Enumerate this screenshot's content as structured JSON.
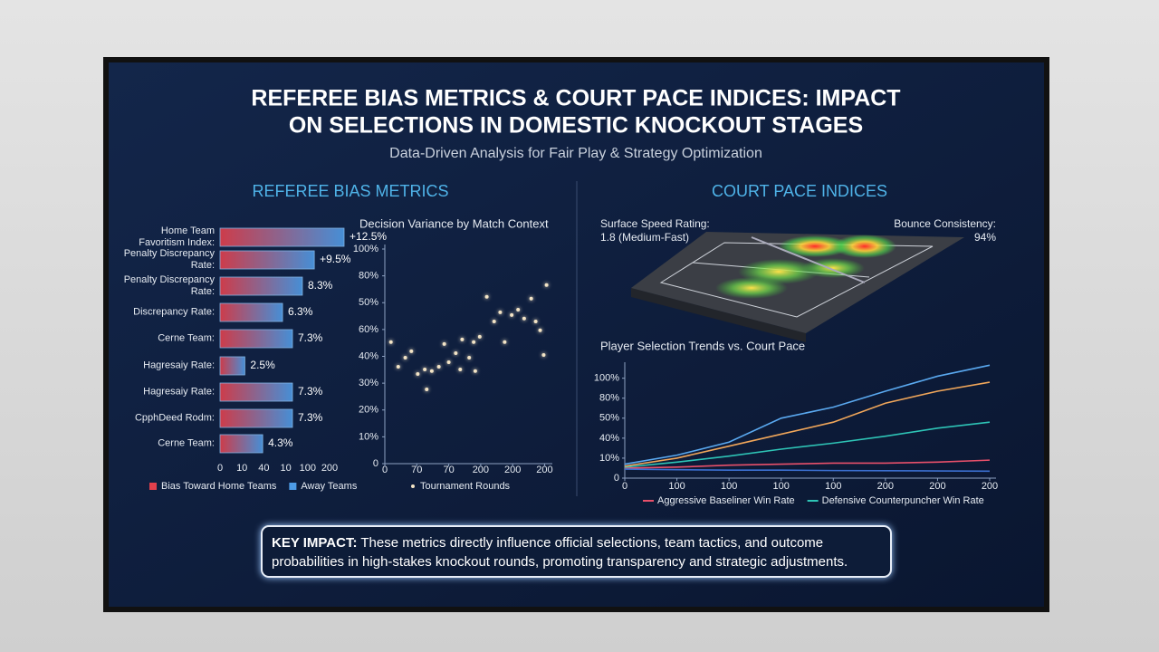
{
  "title": [
    "REFEREE BIAS METRICS & COURT PACE INDICES: IMPACT",
    "ON SELECTIONS IN DOMESTIC KNOCKOUT STAGES"
  ],
  "subtitle": "Data-Driven Analysis for Fair Play & Strategy Optimization",
  "sections": [
    "REFEREE BIAS METRICS",
    "COURT PACE INDICES"
  ],
  "court": {
    "speed_label": "Surface Speed Rating:",
    "speed_value": "1.8 (Medium-Fast)",
    "bounce_label": "Bounce Consistency:",
    "bounce_value": "94%"
  },
  "key_impact": {
    "label": "KEY IMPACT:",
    "lines": [
      "These metrics directly influence official selections, team tactics, and outcome",
      "probabilities in high-stakes knockout rounds, promoting transparency and strategic adjustments."
    ]
  },
  "chart_data": [
    {
      "type": "hbar",
      "categories": [
        "Home Team Favoritism Index:",
        "Penalty Discrepancy Rate:",
        "Penalty Discrepancy Rate:",
        "Discrepancy Rate:",
        "Cerne Team:",
        "Hagresaiy Rate:",
        "Hagresaiy Rate:",
        "CpphDeed Rodm:",
        "Cerne Team:"
      ],
      "values": [
        12.5,
        9.5,
        8.3,
        6.3,
        7.3,
        2.5,
        7.3,
        7.3,
        4.3
      ],
      "value_labels": [
        "+12.5%",
        "+9.5%",
        "8.3%",
        "6.3%",
        "7.3%",
        "2.5%",
        "7.3%",
        "7.3%",
        "4.3%"
      ],
      "xtick_labels": [
        "0",
        "10",
        "40",
        "10",
        "100",
        "200"
      ],
      "legend": [
        {
          "name": "Bias Toward Home Teams",
          "color": "#e2404c"
        },
        {
          "name": "Away Teams",
          "color": "#4d9be6"
        }
      ]
    },
    {
      "type": "scatter",
      "title": "Decision Variance by Match Context",
      "series": [
        {
          "name": "Tournament Rounds",
          "color": "#f3e4c6",
          "x": [
            0.19,
            0.42,
            0.64,
            0.83,
            1.03,
            1.25,
            1.31,
            1.47,
            1.69,
            1.86,
            2.0,
            2.22,
            2.42,
            2.64,
            2.78,
            2.97,
            3.19,
            3.42,
            3.61,
            3.75,
            3.97,
            4.17,
            4.36,
            4.58,
            4.72,
            4.86,
            4.97,
            5.06,
            2.83,
            2.36
          ],
          "values": [
            45.3,
            36.1,
            39.5,
            41.9,
            33.4,
            35.1,
            27.7,
            34.5,
            36.1,
            44.6,
            37.8,
            41.2,
            46.3,
            39.5,
            45.3,
            47.3,
            62.2,
            53.0,
            56.4,
            45.3,
            55.4,
            57.4,
            54.1,
            61.5,
            53.0,
            49.7,
            40.5,
            66.6,
            34.5,
            35.1
          ]
        }
      ],
      "xlim": [
        0,
        5.1
      ],
      "xticks": [
        0,
        {
          "value": 1,
          "label": "70"
        },
        {
          "value": 2,
          "label": "70"
        },
        {
          "value": 3,
          "label": "200"
        },
        {
          "value": 4,
          "label": "200"
        },
        {
          "value": 5,
          "label": "200"
        }
      ],
      "ylim": [
        0,
        80
      ],
      "yticks": [
        0,
        {
          "value": 10,
          "label": "10%"
        },
        {
          "value": 20,
          "label": "20%"
        },
        {
          "value": 30,
          "label": "30%"
        },
        {
          "value": 40,
          "label": "40%"
        },
        {
          "value": 50,
          "label": "60%"
        },
        {
          "value": 60,
          "label": "50%"
        },
        {
          "value": 70,
          "label": "80%"
        },
        {
          "value": 80,
          "label": "100%"
        }
      ]
    },
    {
      "type": "line",
      "title": "Player Selection Trends vs. Court Pace",
      "x": [
        0,
        1,
        2,
        3,
        4,
        5,
        6,
        7
      ],
      "series": [
        {
          "name": "Aggressive Baseliner Win Rate",
          "color": "#e8506a",
          "values": [
            0.5,
            0.55,
            0.65,
            0.7,
            0.75,
            0.75,
            0.8,
            0.9
          ]
        },
        {
          "name": "Defensive Counterpuncher Win Rate",
          "color": "#2ec4b6",
          "values": [
            0.55,
            0.8,
            1.1,
            1.45,
            1.75,
            2.1,
            2.5,
            2.8
          ]
        },
        {
          "color": "#5aa9f0",
          "values": [
            0.7,
            1.15,
            1.8,
            3.0,
            3.55,
            4.35,
            5.1,
            5.65
          ]
        },
        {
          "color": "#f0a65a",
          "values": [
            0.6,
            1.0,
            1.6,
            2.2,
            2.8,
            3.75,
            4.35,
            4.8
          ]
        },
        {
          "color": "#3b6fd0",
          "values": [
            0.45,
            0.42,
            0.4,
            0.4,
            0.38,
            0.37,
            0.36,
            0.35
          ]
        }
      ],
      "xlim": [
        0,
        7
      ],
      "xticks": [
        0,
        {
          "value": 1,
          "label": "100"
        },
        {
          "value": 2,
          "label": "100"
        },
        {
          "value": 3,
          "label": "100"
        },
        {
          "value": 4,
          "label": "100"
        },
        {
          "value": 5,
          "label": "200"
        },
        {
          "value": 6,
          "label": "200"
        },
        {
          "value": 7,
          "label": "200"
        }
      ],
      "ylim": [
        0,
        5.8
      ],
      "yticks": [
        0,
        {
          "value": 1,
          "label": "10%"
        },
        {
          "value": 2,
          "label": "40%"
        },
        {
          "value": 3,
          "label": "50%"
        },
        {
          "value": 4,
          "label": "80%"
        },
        {
          "value": 5,
          "label": "100%"
        }
      ]
    }
  ]
}
